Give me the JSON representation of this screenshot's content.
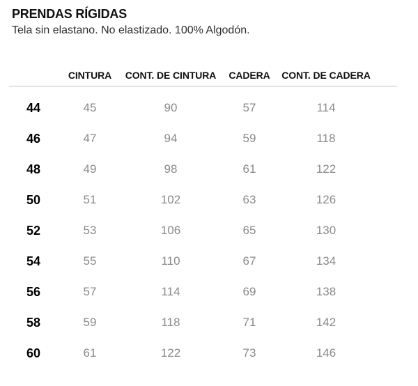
{
  "header": {
    "title": "PRENDAS RÍGIDAS",
    "subtitle": "Tela sin elastano. No elastizado. 100% Algodón."
  },
  "table": {
    "columns": [
      "CINTURA",
      "CONT. DE CINTURA",
      "CADERA",
      "CONT. DE CADERA"
    ],
    "rows": [
      {
        "size": "44",
        "values": [
          "45",
          "90",
          "57",
          "114"
        ]
      },
      {
        "size": "46",
        "values": [
          "47",
          "94",
          "59",
          "118"
        ]
      },
      {
        "size": "48",
        "values": [
          "49",
          "98",
          "61",
          "122"
        ]
      },
      {
        "size": "50",
        "values": [
          "51",
          "102",
          "63",
          "126"
        ]
      },
      {
        "size": "52",
        "values": [
          "53",
          "106",
          "65",
          "130"
        ]
      },
      {
        "size": "54",
        "values": [
          "55",
          "110",
          "67",
          "134"
        ]
      },
      {
        "size": "56",
        "values": [
          "57",
          "114",
          "69",
          "138"
        ]
      },
      {
        "size": "58",
        "values": [
          "59",
          "118",
          "71",
          "142"
        ]
      },
      {
        "size": "60",
        "values": [
          "61",
          "122",
          "73",
          "146"
        ]
      }
    ]
  },
  "colors": {
    "title_text": "#111111",
    "value_text": "#8a8a8a",
    "divider": "#e2e2e2",
    "background": "#ffffff"
  }
}
